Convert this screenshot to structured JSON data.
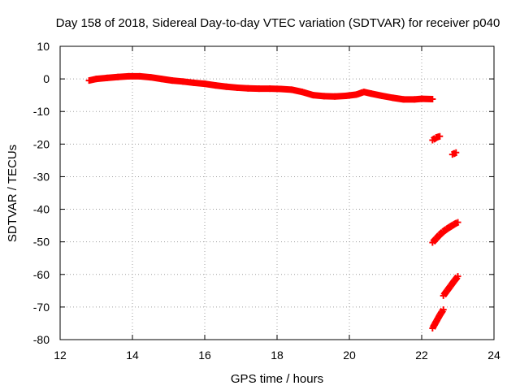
{
  "chart_data": {
    "type": "scatter",
    "title": "Day 158 of 2018, Sidereal Day-to-day VTEC variation (SDTVAR) for receiver p040",
    "xlabel": "GPS time / hours",
    "ylabel": "SDTVAR / TECUs",
    "xlim": [
      12,
      24
    ],
    "ylim": [
      -80,
      10
    ],
    "xticks": [
      12,
      14,
      16,
      18,
      20,
      22,
      24
    ],
    "yticks": [
      10,
      0,
      -10,
      -20,
      -30,
      -40,
      -50,
      -60,
      -70,
      -80
    ],
    "grid": true,
    "legend": "none",
    "marker_color": "#ff0000",
    "series": [
      {
        "x": [
          12.8,
          13.0,
          13.3,
          13.6,
          13.9,
          14.2,
          14.5,
          14.8,
          15.1,
          15.4,
          15.7,
          16.0,
          16.3,
          16.6,
          16.9,
          17.2,
          17.5,
          17.8,
          18.1,
          18.4,
          18.7,
          19.0,
          19.3,
          19.6,
          19.9,
          20.2,
          20.4,
          20.6,
          20.9,
          21.2,
          21.5,
          21.8,
          22.0,
          22.3
        ],
        "y": [
          -0.5,
          0.0,
          0.3,
          0.6,
          0.8,
          0.8,
          0.5,
          0.0,
          -0.5,
          -0.8,
          -1.2,
          -1.5,
          -2.0,
          -2.4,
          -2.7,
          -2.9,
          -3.0,
          -3.0,
          -3.1,
          -3.3,
          -4.0,
          -5.0,
          -5.3,
          -5.4,
          -5.2,
          -4.8,
          -4.0,
          -4.5,
          -5.2,
          -5.8,
          -6.3,
          -6.3,
          -6.1,
          -6.2
        ]
      },
      {
        "x": [
          22.3,
          22.4,
          22.5
        ],
        "y": [
          -18.8,
          -18.0,
          -17.6
        ]
      },
      {
        "x": [
          22.85,
          22.95
        ],
        "y": [
          -23.2,
          -22.6
        ]
      },
      {
        "x": [
          22.3,
          22.4,
          22.5,
          22.6,
          22.7,
          22.8,
          22.9,
          23.0
        ],
        "y": [
          -50.2,
          -49.0,
          -47.8,
          -46.8,
          -46.0,
          -45.3,
          -44.6,
          -44.0
        ]
      },
      {
        "x": [
          22.6,
          22.7,
          22.8,
          22.9,
          23.0
        ],
        "y": [
          -66.5,
          -65.0,
          -63.5,
          -62.0,
          -60.6
        ]
      },
      {
        "x": [
          22.3,
          22.35,
          22.4,
          22.45,
          22.5,
          22.55,
          22.6
        ],
        "y": [
          -76.5,
          -75.5,
          -74.5,
          -73.5,
          -72.5,
          -71.6,
          -70.8
        ]
      }
    ]
  }
}
